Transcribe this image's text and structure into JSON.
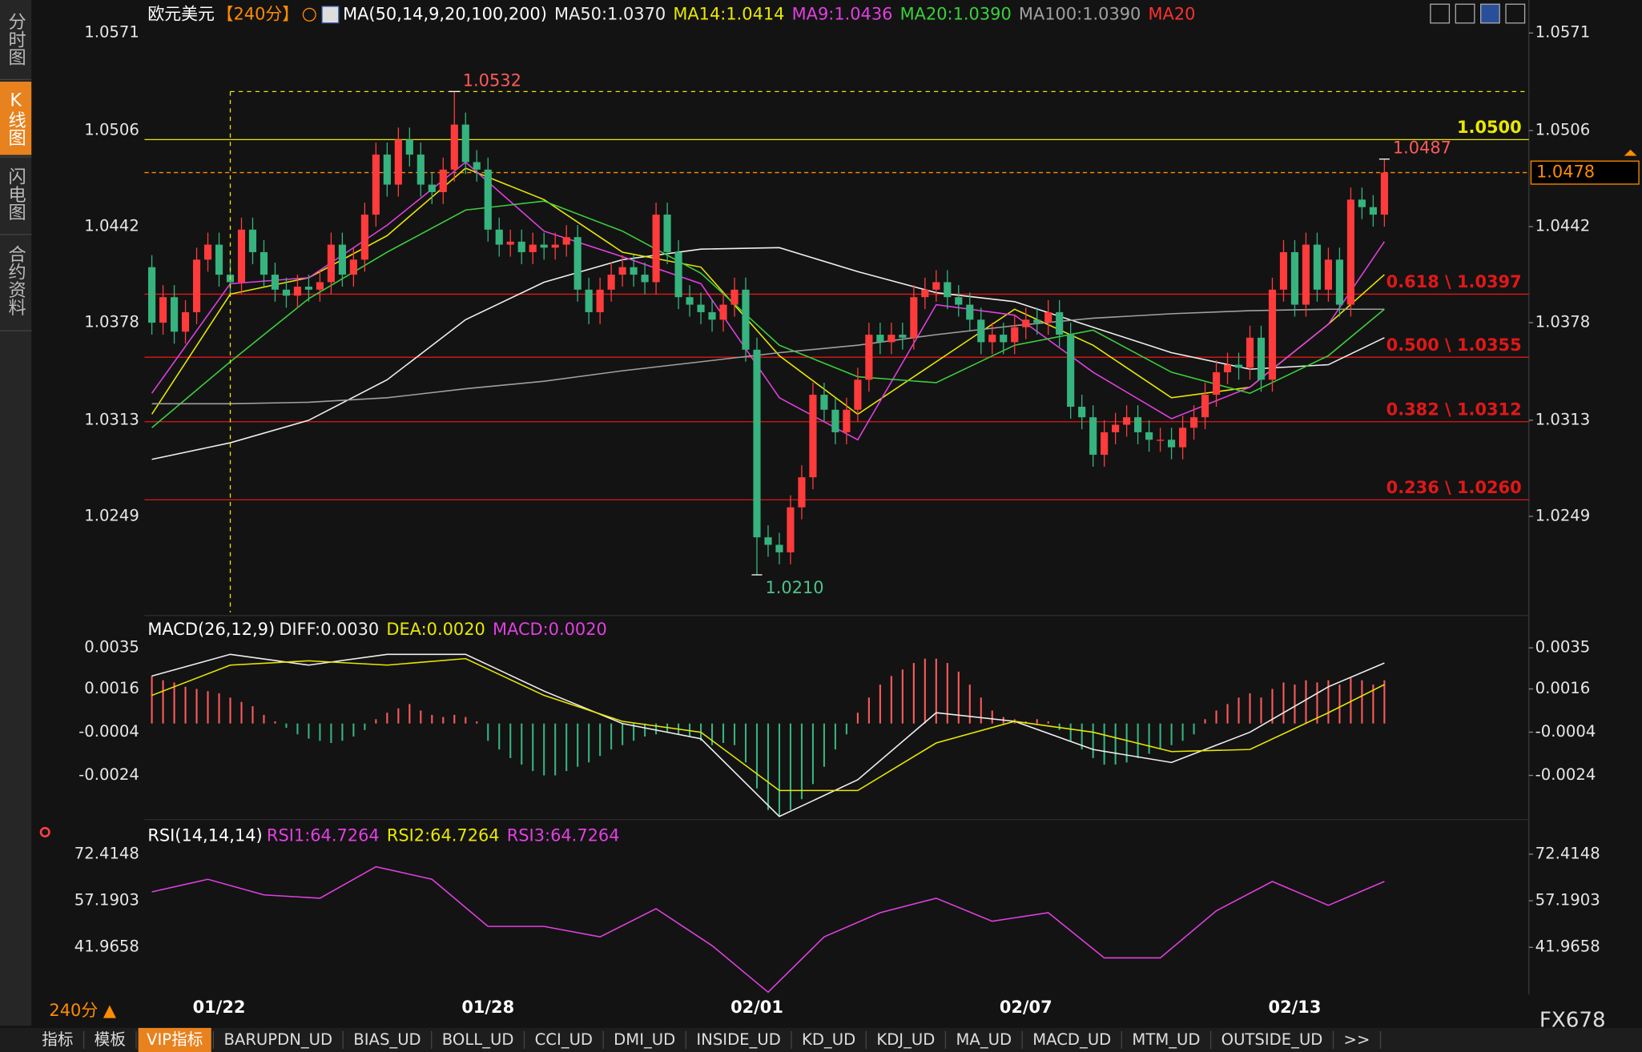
{
  "sidebar": {
    "tabs": [
      "分时图",
      "K线图",
      "闪电图",
      "合约资料"
    ],
    "active": 1
  },
  "chart_data": [
    {
      "type": "candlestick",
      "title": "欧元美元",
      "period": "【240分】",
      "indicator": "MA(50,14,9,20,100,200)",
      "legend_extra": {
        "name": "MA20",
        "color": "#ff3030"
      },
      "categories": [
        null,
        null,
        null,
        null,
        null,
        null,
        "01/22",
        null,
        null,
        null,
        null,
        null,
        null,
        null,
        null,
        null,
        null,
        null,
        null,
        null,
        null,
        null,
        null,
        null,
        null,
        null,
        null,
        null,
        null,
        null,
        "01/28",
        null,
        null,
        null,
        null,
        null,
        null,
        null,
        null,
        null,
        null,
        null,
        null,
        null,
        null,
        null,
        null,
        null,
        null,
        null,
        null,
        null,
        null,
        null,
        "02/01",
        null,
        null,
        null,
        null,
        null,
        null,
        null,
        null,
        null,
        null,
        null,
        null,
        null,
        null,
        null,
        null,
        null,
        null,
        null,
        null,
        null,
        null,
        null,
        "02/07",
        null,
        null,
        null,
        null,
        null,
        null,
        null,
        null,
        null,
        null,
        null,
        null,
        null,
        null,
        null,
        null,
        null,
        null,
        null,
        null,
        null,
        null,
        null,
        "02/13",
        null,
        null,
        null,
        null,
        null,
        null,
        null,
        null
      ],
      "open": [
        1.0415,
        1.0378,
        1.0395,
        1.0372,
        1.0385,
        1.042,
        1.043,
        1.041,
        1.0405,
        1.044,
        1.0425,
        1.041,
        1.04,
        1.0396,
        1.0402,
        1.04,
        1.0405,
        1.043,
        1.041,
        1.042,
        1.045,
        1.049,
        1.047,
        1.05,
        1.049,
        1.047,
        1.0465,
        1.048,
        1.051,
        1.0485,
        1.048,
        1.044,
        1.043,
        1.0432,
        1.0425,
        1.043,
        1.0428,
        1.043,
        1.0435,
        1.04,
        1.0385,
        1.04,
        1.041,
        1.0415,
        1.041,
        1.0405,
        1.045,
        1.0425,
        1.0395,
        1.039,
        1.0385,
        1.038,
        1.039,
        1.04,
        1.036,
        1.0235,
        1.023,
        1.0225,
        1.0255,
        1.0275,
        1.033,
        1.032,
        1.0305,
        1.032,
        1.034,
        1.037,
        1.0365,
        1.037,
        1.0368,
        1.0395,
        1.04,
        1.0405,
        1.0395,
        1.039,
        1.038,
        1.0365,
        1.037,
        1.0365,
        1.0375,
        1.038,
        1.0378,
        1.0385,
        1.037,
        1.0322,
        1.0315,
        1.029,
        1.0305,
        1.031,
        1.0315,
        1.0305,
        1.03,
        1.03,
        1.0295,
        1.0308,
        1.0315,
        1.033,
        1.0345,
        1.035,
        1.0348,
        1.0368,
        1.034,
        1.04,
        1.0425,
        1.039,
        1.043,
        1.04,
        1.042,
        1.039,
        1.046,
        1.0455,
        1.045
      ],
      "high": [
        1.0423,
        1.0403,
        1.0403,
        1.0393,
        1.0428,
        1.0438,
        1.0438,
        1.0418,
        1.0448,
        1.0448,
        1.0433,
        1.0418,
        1.0408,
        1.041,
        1.041,
        1.0413,
        1.0438,
        1.0438,
        1.0428,
        1.0458,
        1.0498,
        1.0498,
        1.0508,
        1.0508,
        1.0498,
        1.0478,
        1.0488,
        1.0532,
        1.0518,
        1.0493,
        1.0488,
        1.0448,
        1.044,
        1.044,
        1.0438,
        1.0438,
        1.0438,
        1.0443,
        1.0443,
        1.0408,
        1.0408,
        1.0418,
        1.0423,
        1.0423,
        1.0418,
        1.0458,
        1.0458,
        1.0433,
        1.0403,
        1.0398,
        1.0393,
        1.0398,
        1.0408,
        1.0408,
        1.0368,
        1.0243,
        1.0238,
        1.0263,
        1.0283,
        1.0338,
        1.0338,
        1.0328,
        1.0328,
        1.0348,
        1.0378,
        1.0378,
        1.0378,
        1.0378,
        1.0403,
        1.0408,
        1.0413,
        1.0413,
        1.0403,
        1.0398,
        1.0388,
        1.0378,
        1.0378,
        1.0383,
        1.0388,
        1.0388,
        1.0393,
        1.0393,
        1.0378,
        1.033,
        1.0323,
        1.0313,
        1.0318,
        1.0323,
        1.0323,
        1.0313,
        1.0308,
        1.0308,
        1.0316,
        1.0323,
        1.0338,
        1.0353,
        1.0358,
        1.0358,
        1.0376,
        1.0376,
        1.0408,
        1.0433,
        1.0433,
        1.0438,
        1.0438,
        1.0428,
        1.0428,
        1.0468,
        1.0468,
        1.0463,
        1.0487
      ],
      "low": [
        1.037,
        1.037,
        1.0364,
        1.0364,
        1.0377,
        1.0412,
        1.0402,
        1.0397,
        1.0397,
        1.0417,
        1.0402,
        1.0392,
        1.0388,
        1.0388,
        1.0392,
        1.0392,
        1.0397,
        1.0402,
        1.0402,
        1.0412,
        1.0442,
        1.0462,
        1.0462,
        1.0482,
        1.0462,
        1.0457,
        1.0457,
        1.0472,
        1.0477,
        1.0472,
        1.0432,
        1.0422,
        1.0422,
        1.0417,
        1.0417,
        1.042,
        1.042,
        1.0422,
        1.0392,
        1.0377,
        1.0377,
        1.0392,
        1.0402,
        1.0402,
        1.0397,
        1.0397,
        1.0417,
        1.0387,
        1.0382,
        1.0377,
        1.0372,
        1.0372,
        1.0382,
        1.0352,
        1.021,
        1.0222,
        1.0217,
        1.0217,
        1.0247,
        1.0267,
        1.0312,
        1.0297,
        1.0297,
        1.0312,
        1.0332,
        1.0357,
        1.0357,
        1.036,
        1.036,
        1.0387,
        1.0392,
        1.0387,
        1.0382,
        1.0372,
        1.0357,
        1.0357,
        1.0357,
        1.0357,
        1.0367,
        1.037,
        1.037,
        1.0362,
        1.0314,
        1.0307,
        1.0282,
        1.0282,
        1.0297,
        1.0302,
        1.0297,
        1.0292,
        1.0292,
        1.0287,
        1.0287,
        1.03,
        1.0307,
        1.0322,
        1.0337,
        1.034,
        1.034,
        1.0332,
        1.0332,
        1.0392,
        1.0382,
        1.0382,
        1.0392,
        1.0392,
        1.0382,
        1.0382,
        1.0447,
        1.0442,
        1.0442
      ],
      "close": [
        1.0378,
        1.0395,
        1.0372,
        1.0385,
        1.042,
        1.043,
        1.041,
        1.0405,
        1.044,
        1.0425,
        1.041,
        1.04,
        1.0396,
        1.0402,
        1.04,
        1.0405,
        1.043,
        1.041,
        1.042,
        1.045,
        1.049,
        1.047,
        1.05,
        1.049,
        1.047,
        1.0465,
        1.048,
        1.051,
        1.0485,
        1.048,
        1.044,
        1.043,
        1.0432,
        1.0425,
        1.043,
        1.0428,
        1.043,
        1.0435,
        1.04,
        1.0385,
        1.04,
        1.041,
        1.0415,
        1.041,
        1.0405,
        1.045,
        1.0425,
        1.0395,
        1.039,
        1.0385,
        1.038,
        1.039,
        1.04,
        1.036,
        1.0235,
        1.023,
        1.0225,
        1.0255,
        1.0275,
        1.033,
        1.032,
        1.0305,
        1.032,
        1.034,
        1.037,
        1.0365,
        1.037,
        1.0368,
        1.0395,
        1.04,
        1.0405,
        1.0395,
        1.039,
        1.038,
        1.0365,
        1.037,
        1.0365,
        1.0375,
        1.038,
        1.0378,
        1.0385,
        1.037,
        1.0322,
        1.0315,
        1.029,
        1.0305,
        1.031,
        1.0315,
        1.0305,
        1.03,
        1.03,
        1.0295,
        1.0308,
        1.0315,
        1.033,
        1.0345,
        1.035,
        1.0348,
        1.0368,
        1.034,
        1.04,
        1.0425,
        1.039,
        1.043,
        1.04,
        1.042,
        1.039,
        1.046,
        1.0455,
        1.045,
        1.0478
      ],
      "up_color": "#ff3b3b",
      "down_color": "#36b37e",
      "ylim": [
        1.0185,
        1.0593
      ],
      "yticks": [
        1.0571,
        1.0506,
        1.0442,
        1.0378,
        1.0313,
        1.0249
      ],
      "series": [
        {
          "name": "MA50:1.0370",
          "color": "#f0f0f0",
          "x": [
            0,
            7,
            14,
            21,
            28,
            35,
            42,
            49,
            56,
            63,
            70,
            77,
            84,
            91,
            98,
            105,
            110
          ],
          "values": [
            1.0287,
            1.0298,
            1.0313,
            1.034,
            1.038,
            1.0405,
            1.042,
            1.0427,
            1.0428,
            1.0412,
            1.0398,
            1.0392,
            1.0375,
            1.0358,
            1.0347,
            1.035,
            1.0368
          ]
        },
        {
          "name": "MA14:1.0414",
          "color": "#e8e800",
          "x": [
            0,
            7,
            14,
            21,
            28,
            35,
            42,
            49,
            56,
            63,
            70,
            77,
            84,
            91,
            98,
            105,
            110
          ],
          "values": [
            1.0317,
            1.0397,
            1.0408,
            1.0436,
            1.0481,
            1.046,
            1.0425,
            1.0415,
            1.0356,
            1.0317,
            1.0352,
            1.0387,
            1.0363,
            1.0328,
            1.0335,
            1.0377,
            1.041
          ]
        },
        {
          "name": "MA9:1.0436",
          "color": "#e040e0",
          "x": [
            0,
            7,
            14,
            21,
            28,
            35,
            42,
            49,
            56,
            63,
            70,
            77,
            84,
            91,
            98,
            105,
            110
          ],
          "values": [
            1.0331,
            1.0404,
            1.0408,
            1.0443,
            1.0485,
            1.0439,
            1.0422,
            1.0404,
            1.0328,
            1.03,
            1.039,
            1.0383,
            1.0345,
            1.0314,
            1.0335,
            1.0377,
            1.0432
          ]
        },
        {
          "name": "MA20:1.0390",
          "color": "#3cd03c",
          "x": [
            0,
            7,
            14,
            21,
            28,
            35,
            42,
            49,
            56,
            63,
            70,
            77,
            84,
            91,
            98,
            105,
            110
          ],
          "values": [
            1.0308,
            1.0352,
            1.0394,
            1.0425,
            1.0453,
            1.0459,
            1.0439,
            1.0411,
            1.0363,
            1.0342,
            1.0338,
            1.0363,
            1.0373,
            1.0345,
            1.0331,
            1.0356,
            1.0387
          ]
        },
        {
          "name": "MA100:1.0390",
          "color": "#a0a0a0",
          "x": [
            0,
            7,
            14,
            21,
            28,
            35,
            42,
            49,
            56,
            63,
            70,
            77,
            84,
            91,
            98,
            105,
            110
          ],
          "values": [
            1.0324,
            1.0324,
            1.0325,
            1.0328,
            1.0334,
            1.0339,
            1.0346,
            1.0352,
            1.0358,
            1.0363,
            1.037,
            1.0376,
            1.0381,
            1.0384,
            1.0386,
            1.0387,
            1.0387
          ]
        }
      ],
      "levels": [
        {
          "label": "1.0500",
          "value": 1.05,
          "color": "#e8e800"
        },
        {
          "label": "0.618 \\ 1.0397",
          "value": 1.0397,
          "color": "#e01818"
        },
        {
          "label": "0.500 \\ 1.0355",
          "value": 1.0355,
          "color": "#e01818"
        },
        {
          "label": "0.382 \\ 1.0312",
          "value": 1.0312,
          "color": "#e01818"
        },
        {
          "label": "0.236 \\ 1.0260",
          "value": 1.026,
          "color": "#e01818"
        }
      ],
      "annotations": [
        {
          "label": "1.0532",
          "value": 1.0532
        },
        {
          "label": "1.0210",
          "value": 1.021
        },
        {
          "label": "1.0487",
          "value": 1.0487
        }
      ],
      "last_price": {
        "label": "1.0478",
        "value": 1.0478,
        "color": "#ff8c00"
      }
    },
    {
      "type": "macd",
      "title": "MACD(26,12,9)",
      "hist_name": "MACD:0.0020",
      "hist_name_color": "#e040e0",
      "values": [
        0.0022,
        0.002,
        0.0019,
        0.0017,
        0.0016,
        0.0015,
        0.0014,
        0.0012,
        0.001,
        0.0008,
        0.0004,
        0.0001,
        -0.0002,
        -0.0005,
        -0.0007,
        -0.0008,
        -0.0009,
        -0.0008,
        -0.0006,
        -0.0003,
        0.0002,
        0.0005,
        0.0007,
        0.0009,
        0.0006,
        0.0004,
        0.0003,
        0.0004,
        0.0003,
        0.0001,
        -0.0008,
        -0.0012,
        -0.0016,
        -0.0019,
        -0.0022,
        -0.0024,
        -0.0024,
        -0.0022,
        -0.002,
        -0.0018,
        -0.0015,
        -0.0012,
        -0.001,
        -0.0008,
        -0.0006,
        -0.0005,
        -0.0004,
        -0.0005,
        -0.0006,
        -0.0008,
        -0.001,
        -0.0009,
        -0.001,
        -0.0018,
        -0.003,
        -0.004,
        -0.0043,
        -0.004,
        -0.0035,
        -0.0028,
        -0.002,
        -0.0012,
        -0.0005,
        0.0005,
        0.0012,
        0.0018,
        0.0022,
        0.0025,
        0.0028,
        0.003,
        0.003,
        0.0028,
        0.0024,
        0.0018,
        0.0012,
        0.0006,
        0.0003,
        0.0002,
        0.0001,
        0.0002,
        0.0001,
        -0.0003,
        -0.0008,
        -0.0012,
        -0.0016,
        -0.0019,
        -0.0019,
        -0.0018,
        -0.0016,
        -0.0014,
        -0.0012,
        -0.001,
        -0.0008,
        -0.0005,
        0.0002,
        0.0006,
        0.0009,
        0.0012,
        0.0014,
        0.0012,
        0.0016,
        0.0019,
        0.0018,
        0.002,
        0.0019,
        0.002,
        0.0018,
        0.0021,
        0.002,
        0.0018,
        0.002
      ],
      "up_color": "#ff5a5a",
      "down_color": "#36b37e",
      "ylim": [
        -0.0043,
        0.0049
      ],
      "yticks": [
        0.0035,
        0.0016,
        -0.0004,
        -0.0024
      ],
      "series": [
        {
          "name": "DIFF:0.0030",
          "color": "#f0f0f0",
          "x": [
            0,
            7,
            14,
            21,
            28,
            35,
            42,
            49,
            56,
            63,
            70,
            77,
            84,
            91,
            98,
            105,
            110
          ],
          "values": [
            0.0022,
            0.0032,
            0.0027,
            0.0032,
            0.0032,
            0.0015,
            0.0,
            -0.0007,
            -0.0043,
            -0.0026,
            0.0005,
            0.0001,
            -0.0012,
            -0.0018,
            -0.0004,
            0.0017,
            0.0028
          ]
        },
        {
          "name": "DEA:0.0020",
          "color": "#e8e800",
          "x": [
            0,
            7,
            14,
            21,
            28,
            35,
            42,
            49,
            56,
            63,
            70,
            77,
            84,
            91,
            98,
            105,
            110
          ],
          "values": [
            0.0013,
            0.0027,
            0.0029,
            0.0027,
            0.003,
            0.0013,
            0.0001,
            -0.0004,
            -0.0031,
            -0.0031,
            -0.0009,
            0.0001,
            -0.0004,
            -0.0013,
            -0.0012,
            0.0005,
            0.0018
          ]
        }
      ]
    },
    {
      "type": "line",
      "title": "RSI(14,14,14)",
      "ylim": [
        26.57,
        83.02
      ],
      "yticks": [
        72.4148,
        57.1903,
        41.9658
      ],
      "series": [
        {
          "name": "RSI1:64.7264",
          "color": "#e040e0",
          "x": [
            0,
            5,
            10,
            15,
            20,
            25,
            30,
            35,
            40,
            45,
            50,
            55,
            60,
            65,
            70,
            75,
            80,
            85,
            90,
            95,
            100,
            105,
            110
          ],
          "values": [
            60.1,
            64.2,
            59.1,
            58.0,
            68.3,
            64.2,
            48.8,
            48.8,
            45.4,
            54.6,
            42.5,
            27.3,
            45.4,
            53.3,
            58.0,
            50.5,
            53.3,
            38.5,
            38.5,
            53.9,
            63.5,
            55.7,
            63.5
          ]
        }
      ],
      "legend_extra": [
        {
          "name": "RSI2:64.7264",
          "color": "#e8e800"
        },
        {
          "name": "RSI3:64.7264",
          "color": "#e040e0"
        }
      ]
    }
  ],
  "footer": {
    "period": "240分 ▲",
    "brand": "FX678",
    "tabs": [
      "指标",
      "模板",
      "VIP指标",
      "BARUPDN_UD",
      "BIAS_UD",
      "BOLL_UD",
      "CCI_UD",
      "DMI_UD",
      "INSIDE_UD",
      "KD_UD",
      "KDJ_UD",
      "MA_UD",
      "MACD_UD",
      "MTM_UD",
      "OUTSIDE_UD",
      ">>"
    ],
    "active_tab": 2
  }
}
